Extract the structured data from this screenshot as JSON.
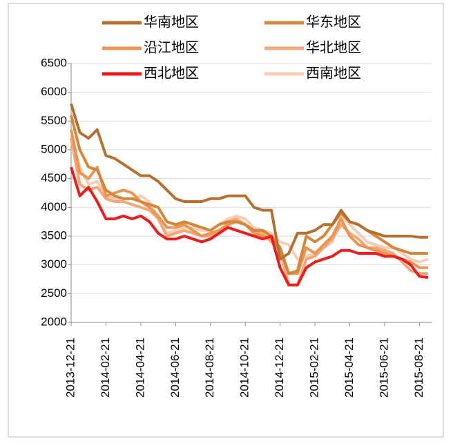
{
  "chart_data": {
    "type": "line",
    "categories": [
      "2013-12-21",
      null,
      null,
      null,
      "2014-02-21",
      null,
      null,
      null,
      "2014-04-21",
      null,
      null,
      null,
      "2014-06-21",
      null,
      null,
      null,
      "2014-08-21",
      null,
      null,
      null,
      "2014-10-21",
      null,
      null,
      null,
      "2014-12-21",
      null,
      null,
      null,
      "2015-02-21",
      null,
      null,
      null,
      "2015-04-21",
      null,
      null,
      null,
      "2015-06-21",
      null,
      null,
      null,
      "2015-08-21",
      null
    ],
    "series": [
      {
        "name": "华南地区",
        "color": "#b5702f",
        "values": [
          5800,
          5300,
          5200,
          5350,
          4900,
          4850,
          4750,
          4650,
          4550,
          4550,
          4450,
          4300,
          4150,
          4100,
          4100,
          4100,
          4150,
          4150,
          4200,
          4200,
          4200,
          4000,
          3950,
          3950,
          3100,
          3200,
          3550,
          3550,
          3600,
          3700,
          3700,
          3950,
          3750,
          3700,
          3600,
          3550,
          3500,
          3500,
          3500,
          3500,
          3480,
          3480
        ]
      },
      {
        "name": "华东地区",
        "color": "#d4873a",
        "values": [
          5600,
          5000,
          4700,
          4650,
          4300,
          4200,
          4150,
          4150,
          4100,
          4050,
          4000,
          3750,
          3700,
          3750,
          3700,
          3650,
          3600,
          3700,
          3750,
          3750,
          3700,
          3600,
          3600,
          3500,
          3300,
          2850,
          2900,
          3500,
          3400,
          3500,
          3700,
          3900,
          3750,
          3700,
          3600,
          3500,
          3400,
          3300,
          3250,
          3200,
          3200,
          3200
        ]
      },
      {
        "name": "沿江地区",
        "color": "#eb9550",
        "values": [
          5350,
          4600,
          4500,
          4700,
          4200,
          4250,
          4300,
          4250,
          4100,
          4000,
          3850,
          3650,
          3650,
          3700,
          3600,
          3500,
          3550,
          3600,
          3700,
          3750,
          3700,
          3550,
          3500,
          3450,
          3300,
          2850,
          2850,
          3300,
          3200,
          3350,
          3500,
          3800,
          3500,
          3350,
          3300,
          3250,
          3200,
          3150,
          3100,
          3050,
          2950,
          2950
        ]
      },
      {
        "name": "华北地区",
        "color": "#f2a878",
        "values": [
          5200,
          4400,
          4300,
          4350,
          4150,
          4100,
          4100,
          4050,
          4000,
          3950,
          3800,
          3500,
          3550,
          3600,
          3550,
          3500,
          3500,
          3550,
          3750,
          3800,
          3700,
          3600,
          3550,
          3400,
          3250,
          2650,
          2650,
          3100,
          3150,
          3300,
          3450,
          3700,
          3550,
          3450,
          3300,
          3300,
          3250,
          3200,
          3050,
          2900,
          2850,
          2850
        ]
      },
      {
        "name": "西北地区",
        "color": "#ee1c1c",
        "values": [
          4700,
          4200,
          4350,
          4100,
          3800,
          3800,
          3850,
          3800,
          3850,
          3750,
          3550,
          3450,
          3450,
          3500,
          3450,
          3400,
          3450,
          3550,
          3650,
          3600,
          3550,
          3500,
          3450,
          3500,
          2950,
          2650,
          2650,
          2950,
          3050,
          3100,
          3150,
          3250,
          3250,
          3200,
          3200,
          3200,
          3150,
          3150,
          3100,
          3000,
          2800,
          2780
        ]
      },
      {
        "name": "西南地区",
        "color": "#f7cdb8",
        "values": [
          5250,
          4700,
          4400,
          4450,
          4200,
          4150,
          4150,
          4150,
          4200,
          4100,
          3800,
          3550,
          3600,
          3650,
          3650,
          3600,
          3600,
          3700,
          3800,
          3850,
          3800,
          3650,
          3600,
          3550,
          3400,
          3350,
          3100,
          3150,
          3200,
          3300,
          3400,
          3850,
          3700,
          3550,
          3400,
          3350,
          3300,
          3300,
          3200,
          3100,
          3050,
          3100
        ]
      }
    ],
    "ylim": [
      2000,
      6500
    ],
    "yticks": [
      2000,
      2500,
      3000,
      3500,
      4000,
      4500,
      5000,
      5500,
      6000,
      6500
    ],
    "grid": true
  }
}
